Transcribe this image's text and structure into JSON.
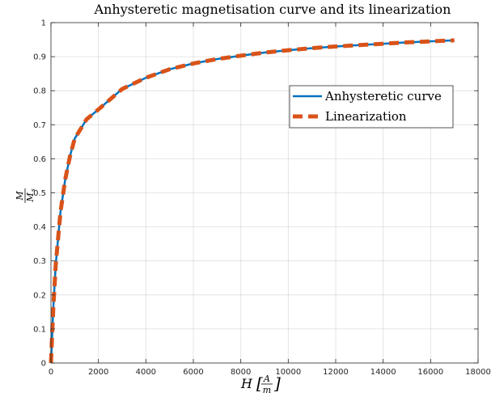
{
  "chart_data": {
    "type": "line",
    "title": "Anhysteretic magnetisation curve and its linearization",
    "xlabel": {
      "main": "H",
      "num": "A",
      "den": "m"
    },
    "ylabel": {
      "num": "M",
      "den": "M",
      "den_sub": "s"
    },
    "xlim": [
      0,
      18000
    ],
    "ylim": [
      0,
      1
    ],
    "xticks": [
      0,
      2000,
      4000,
      6000,
      8000,
      10000,
      12000,
      14000,
      16000,
      18000
    ],
    "xtick_labels": [
      "0",
      "2000",
      "4000",
      "6000",
      "8000",
      "10000",
      "12000",
      "14000",
      "16000",
      "18000"
    ],
    "yticks": [
      0,
      0.1,
      0.2,
      0.3,
      0.4,
      0.5,
      0.6,
      0.7,
      0.8,
      0.9,
      1
    ],
    "ytick_labels": [
      "0",
      "0.1",
      "0.2",
      "0.3",
      "0.4",
      "0.5",
      "0.6",
      "0.7",
      "0.8",
      "0.9",
      "1"
    ],
    "grid": true,
    "legend_position": "upper-right",
    "series": [
      {
        "name": "Anhysteretic curve",
        "color": "#0072BD",
        "style": "solid",
        "x": [
          0,
          100,
          200,
          400,
          600,
          800,
          1000,
          1500,
          2000,
          3000,
          4000,
          5000,
          6000,
          7000,
          8000,
          9000,
          10000,
          11000,
          12000,
          13000,
          14000,
          15000,
          16000,
          17000
        ],
        "y": [
          0,
          0.163,
          0.288,
          0.443,
          0.539,
          0.607,
          0.659,
          0.716,
          0.745,
          0.805,
          0.838,
          0.863,
          0.88,
          0.893,
          0.903,
          0.912,
          0.919,
          0.925,
          0.93,
          0.934,
          0.938,
          0.942,
          0.945,
          0.948
        ]
      },
      {
        "name": "Linearization",
        "color": "#D95319",
        "style": "dashed",
        "x": [
          0,
          100,
          200,
          400,
          600,
          800,
          1000,
          1500,
          2000,
          3000,
          4000,
          5000,
          6000,
          7000,
          8000,
          9000,
          10000,
          11000,
          12000,
          13000,
          14000,
          15000,
          16000,
          17000
        ],
        "y": [
          0,
          0.163,
          0.288,
          0.443,
          0.539,
          0.607,
          0.659,
          0.716,
          0.745,
          0.805,
          0.838,
          0.863,
          0.88,
          0.893,
          0.903,
          0.912,
          0.919,
          0.925,
          0.93,
          0.934,
          0.938,
          0.942,
          0.945,
          0.948
        ]
      }
    ]
  }
}
